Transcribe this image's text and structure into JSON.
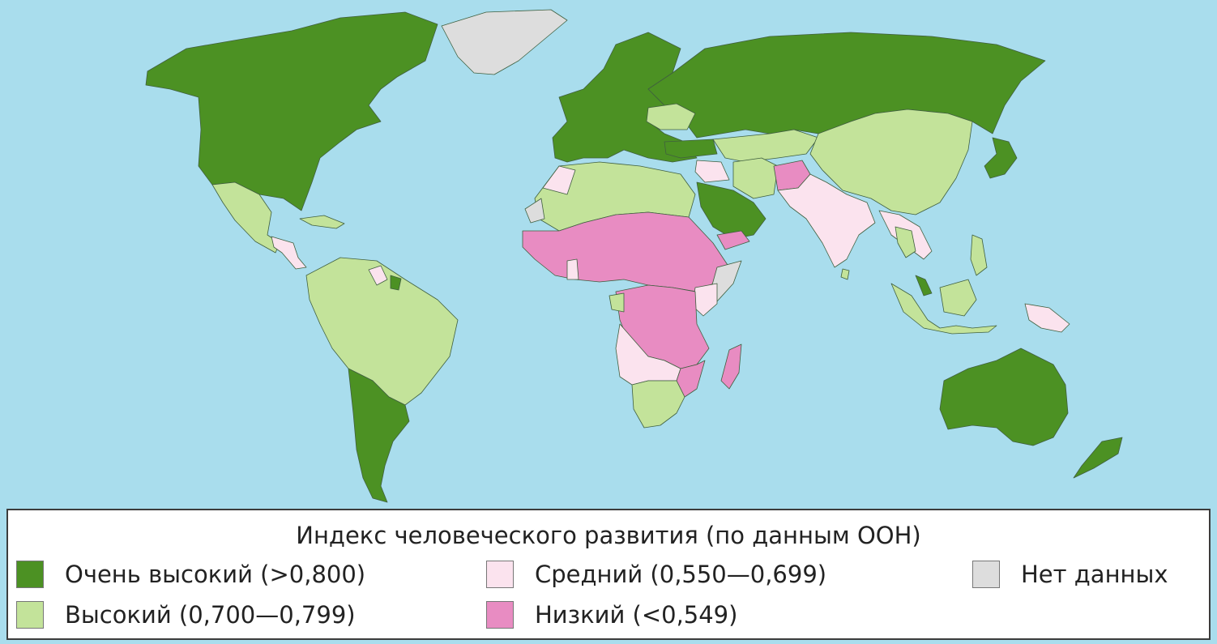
{
  "map": {
    "ocean_color": "#a9dded",
    "categories": {
      "very_high": {
        "label": "Очень высокий (>0,800)",
        "color": "#4c9123"
      },
      "high": {
        "label": "Высокий (0,700—0,799)",
        "color": "#c3e39a"
      },
      "medium": {
        "label": "Средний (0,550—0,699)",
        "color": "#fbe3ee"
      },
      "low": {
        "label": "Низкий (<0,549)",
        "color": "#e88cc2"
      },
      "no_data": {
        "label": "Нет данных",
        "color": "#dddddd"
      }
    }
  },
  "legend": {
    "title": "Индекс человеческого развития (по данным ООН)"
  }
}
